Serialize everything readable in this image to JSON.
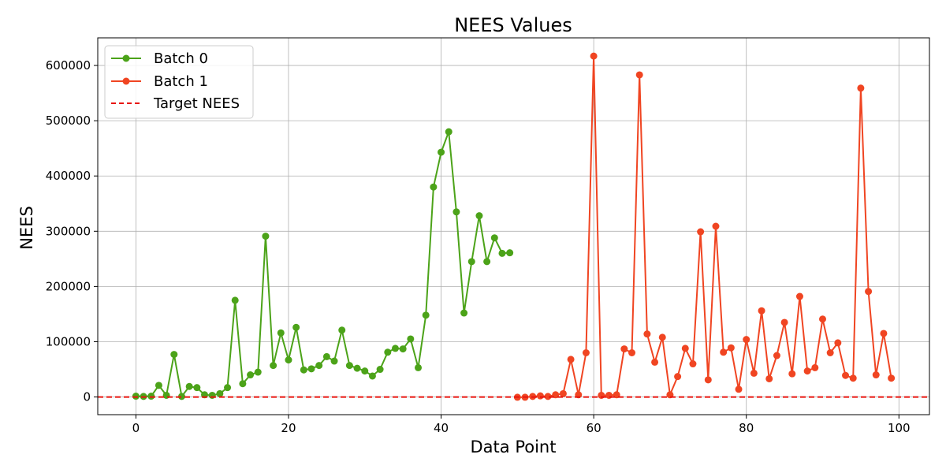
{
  "chart_data": {
    "type": "line",
    "title": "NEES Values",
    "xlabel": "Data Point",
    "ylabel": "NEES",
    "xlim": [
      -5,
      104
    ],
    "ylim": [
      -32000,
      650000
    ],
    "xticks": [
      0,
      20,
      40,
      60,
      80,
      100
    ],
    "yticks": [
      0,
      100000,
      200000,
      300000,
      400000,
      500000,
      600000
    ],
    "grid": true,
    "legend_position": "top-left",
    "series": [
      {
        "name": "Batch 0",
        "color": "#4ca319",
        "marker": "circle",
        "x": [
          0,
          1,
          2,
          3,
          4,
          5,
          6,
          7,
          8,
          9,
          10,
          11,
          12,
          13,
          14,
          15,
          16,
          17,
          18,
          19,
          20,
          21,
          22,
          23,
          24,
          25,
          26,
          27,
          28,
          29,
          30,
          31,
          32,
          33,
          34,
          35,
          36,
          37,
          38,
          39,
          40,
          41,
          42,
          43,
          44,
          45,
          46,
          47,
          48,
          49
        ],
        "values": [
          1500,
          1000,
          1500,
          21000,
          3000,
          77000,
          1000,
          19000,
          17000,
          4000,
          3000,
          6000,
          17000,
          175000,
          24000,
          40000,
          45000,
          291000,
          57000,
          116000,
          67000,
          126000,
          49000,
          51000,
          57000,
          73000,
          65000,
          121000,
          57000,
          52000,
          47000,
          38000,
          50000,
          81000,
          88000,
          87000,
          105000,
          53000,
          148000,
          380000,
          443000,
          480000,
          335000,
          152000,
          245000,
          328000,
          245000,
          288000,
          260000,
          261000
        ]
      },
      {
        "name": "Batch 1",
        "color": "#f04522",
        "marker": "circle",
        "x": [
          50,
          51,
          52,
          53,
          54,
          55,
          56,
          57,
          58,
          59,
          60,
          61,
          62,
          63,
          64,
          65,
          66,
          67,
          68,
          69,
          70,
          71,
          72,
          73,
          74,
          75,
          76,
          77,
          78,
          79,
          80,
          81,
          82,
          83,
          84,
          85,
          86,
          87,
          88,
          89,
          90,
          91,
          92,
          93,
          94,
          95,
          96,
          97,
          98,
          99
        ],
        "values": [
          -500,
          -500,
          1000,
          2000,
          1000,
          4000,
          6000,
          68000,
          4000,
          80000,
          617000,
          3000,
          3000,
          4000,
          87000,
          80000,
          583000,
          114000,
          63000,
          108000,
          4000,
          37000,
          88000,
          60000,
          299000,
          31000,
          309000,
          81000,
          89000,
          14000,
          104000,
          43000,
          156000,
          33000,
          75000,
          135000,
          42000,
          182000,
          47000,
          53000,
          141000,
          80000,
          98000,
          39000,
          34000,
          559000,
          191000,
          40000,
          115000,
          34000
        ]
      }
    ],
    "reference_lines": [
      {
        "name": "Target NEES",
        "y": 0,
        "color": "#e8150f",
        "style": "dashed"
      }
    ]
  }
}
